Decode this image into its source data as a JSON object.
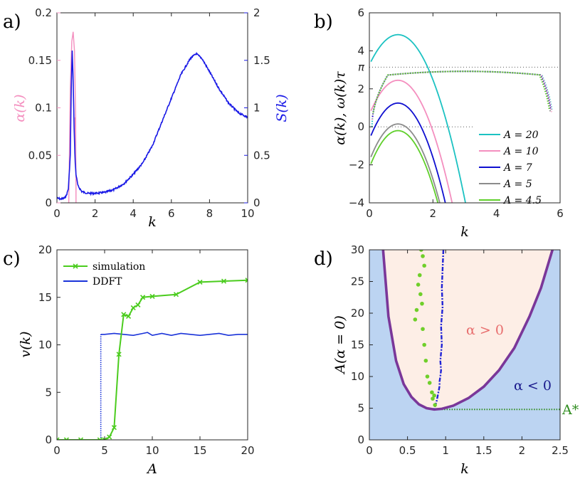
{
  "chart_data": [
    {
      "panel": "a)",
      "type": "line",
      "xlabel": "k",
      "ylabel_left": "α(k)",
      "ylabel_right": "S(k)",
      "xlim": [
        0,
        10
      ],
      "ylim_left": [
        0,
        0.2
      ],
      "ylim_right": [
        0,
        2
      ],
      "xticks": [
        "0",
        "2",
        "4",
        "6",
        "8",
        "10"
      ],
      "yticks_left": [
        "0",
        "0.05",
        "0.1",
        "0.15",
        "0.2"
      ],
      "yticks_right": [
        "0",
        "0.5",
        "1",
        "1.5",
        "2"
      ],
      "colors": {
        "alpha": "#f48fbf",
        "S": "#1a1ae6"
      },
      "series": [
        {
          "axis": "left",
          "x": [
            0.62,
            0.7,
            0.78,
            0.85,
            0.92,
            0.98,
            1.0,
            1.0,
            0.98,
            0.95
          ],
          "y": [
            0.0,
            0.12,
            0.17,
            0.18,
            0.16,
            0.09,
            0.0,
            0.03,
            0.06,
            0.09
          ]
        },
        {
          "axis": "right",
          "x": [
            0.0,
            0.2,
            0.4,
            0.5,
            0.6,
            0.7,
            0.75,
            0.8,
            0.85,
            0.9,
            0.95,
            1.0,
            1.1,
            1.3,
            1.6,
            2.0,
            2.5,
            3.0,
            3.5,
            4.0,
            4.5,
            5.0,
            5.5,
            6.0,
            6.5,
            7.0,
            7.3,
            7.6,
            8.0,
            8.5,
            9.0,
            9.5,
            10.0
          ],
          "y": [
            0.05,
            0.04,
            0.05,
            0.08,
            0.15,
            0.5,
            1.2,
            1.6,
            1.3,
            0.8,
            0.45,
            0.3,
            0.18,
            0.12,
            0.1,
            0.1,
            0.11,
            0.14,
            0.2,
            0.3,
            0.42,
            0.6,
            0.85,
            1.1,
            1.35,
            1.52,
            1.57,
            1.52,
            1.38,
            1.2,
            1.05,
            0.95,
            0.9
          ]
        }
      ]
    },
    {
      "panel": "b)",
      "type": "line",
      "xlabel": "k",
      "ylabel": "α(k), ω(k)τ",
      "xlim": [
        0,
        6
      ],
      "ylim": [
        -4,
        6
      ],
      "xticks": [
        "0",
        "2",
        "4",
        "6"
      ],
      "yticks": [
        "−4",
        "−2",
        "0",
        "2",
        "4",
        "6"
      ],
      "pi_label": "π",
      "pi_value": 3.1416,
      "legend": [
        "A = 20",
        "A = 10",
        "A = 7",
        "A = 5",
        "A = 4.5"
      ],
      "legend_position": "bottom-right",
      "series": [
        {
          "name": "A = 20",
          "color": "#1cc2c2",
          "peak": 4.85,
          "root": 2.8
        },
        {
          "name": "A = 10",
          "color": "#f48fbf",
          "peak": 2.45,
          "root": 2.4
        },
        {
          "name": "A = 7",
          "color": "#0f0fd0",
          "peak": 1.25,
          "root": 2.2
        },
        {
          "name": "A = 5",
          "color": "#8c8c8c",
          "peak": 0.15,
          "root": 2.05
        },
        {
          "name": "A = 4.5",
          "color": "#5fcf2a",
          "peak": -0.2,
          "root": 2.0
        }
      ],
      "omega_curves": "dotted, one per A, plateau near 2.9 from k ≈ 0.1 to k ≈ 5.7"
    },
    {
      "panel": "c)",
      "type": "line",
      "xlabel": "A",
      "ylabel": "v(k)",
      "xlim": [
        0,
        20
      ],
      "ylim": [
        0,
        20
      ],
      "xticks": [
        "0",
        "5",
        "10",
        "15",
        "20"
      ],
      "yticks": [
        "0",
        "5",
        "10",
        "15",
        "20"
      ],
      "legend": [
        "simulation",
        "DDFT"
      ],
      "legend_position": "top-left",
      "series": [
        {
          "name": "simulation",
          "color": "#4bcc1e",
          "x": [
            0,
            1,
            2.5,
            4.5,
            5,
            5.5,
            6,
            6.5,
            7,
            7.5,
            8,
            8.5,
            9,
            10,
            12.5,
            15,
            17.5,
            20
          ],
          "y": [
            0,
            0,
            0,
            0,
            0,
            0.3,
            1.3,
            9,
            13.2,
            13,
            13.9,
            14.2,
            15,
            15.1,
            15.3,
            16.6,
            16.7,
            16.8
          ]
        },
        {
          "name": "DDFT",
          "color": "#1a33d9",
          "x": [
            0,
            4.6,
            4.6,
            5,
            6,
            7,
            8,
            9,
            9.5,
            10,
            11,
            12,
            13,
            14,
            15,
            16,
            17,
            18,
            19,
            20
          ],
          "y": [
            0,
            0,
            11.1,
            11.1,
            11.2,
            11.1,
            11.0,
            11.2,
            11.3,
            11.0,
            11.2,
            11.0,
            11.2,
            11.1,
            11.0,
            11.1,
            11.2,
            11.0,
            11.1,
            11.1
          ]
        }
      ]
    },
    {
      "panel": "d)",
      "type": "line",
      "xlabel": "k",
      "ylabel": "A(α = 0)",
      "xlim": [
        0,
        2.5
      ],
      "ylim": [
        0,
        30
      ],
      "xticks": [
        "0",
        "0.5",
        "1",
        "1.5",
        "2",
        "2.5"
      ],
      "yticks": [
        "0",
        "5",
        "10",
        "15",
        "20",
        "25",
        "30"
      ],
      "annotations": {
        "inside": "α > 0",
        "outside": "α < 0",
        "threshold": "A*"
      },
      "threshold_value": 4.8,
      "colors": {
        "outside_fill": "#bcd4f2",
        "inside_fill": "#fdeee6",
        "boundary": "#7a3799",
        "dots": "#6fcf2a",
        "dashdot": "#1f22d6",
        "threshold": "#2e8c1e",
        "inside_text": "#e86e6e",
        "outside_text": "#1a1a8c",
        "threshold_text": "#2e8c1e"
      },
      "boundary": {
        "x": [
          0.18,
          0.25,
          0.35,
          0.45,
          0.55,
          0.65,
          0.75,
          0.85,
          0.95,
          1.1,
          1.3,
          1.5,
          1.7,
          1.9,
          2.1,
          2.25,
          2.4
        ],
        "y": [
          30,
          19.5,
          12.5,
          8.8,
          6.8,
          5.6,
          5.0,
          4.8,
          4.9,
          5.4,
          6.6,
          8.4,
          11.0,
          14.5,
          19.5,
          24,
          30
        ]
      },
      "dots": {
        "x": [
          0.68,
          0.7,
          0.72,
          0.66,
          0.64,
          0.67,
          0.69,
          0.62,
          0.6,
          0.7,
          0.72,
          0.74,
          0.76,
          0.79,
          0.82,
          0.85,
          0.83,
          0.86
        ],
        "y": [
          30,
          29,
          27.5,
          26,
          24.5,
          23,
          21.5,
          20.5,
          19,
          17.5,
          15,
          12.5,
          10,
          9,
          7.5,
          7,
          6.5,
          5.5
        ]
      },
      "dashdot": {
        "x": [
          0.97,
          0.96,
          0.95,
          0.96,
          0.94,
          0.95,
          0.93,
          0.94,
          0.93,
          0.92,
          0.92,
          0.91,
          0.9,
          0.89,
          0.88,
          0.86,
          0.85
        ],
        "y": [
          30,
          27,
          24,
          21,
          18,
          15,
          12.5,
          11,
          10,
          9.2,
          8.5,
          7.8,
          7.2,
          6.6,
          6.0,
          5.3,
          4.9
        ]
      }
    }
  ]
}
